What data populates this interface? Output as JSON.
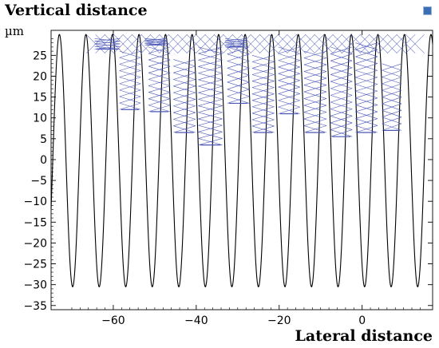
{
  "chart_data": {
    "type": "line",
    "ylabel": "Vertical distance",
    "yunit": "µm",
    "xlabel": "Lateral distance",
    "xlim": [
      -75,
      17
    ],
    "ylim": [
      -36,
      31
    ],
    "xticks": [
      -60,
      -40,
      -20,
      0
    ],
    "xtick_labels": [
      "−60",
      "−40",
      "−20",
      "0"
    ],
    "yticks": [
      25,
      20,
      15,
      10,
      5,
      0,
      -5,
      -10,
      -15,
      -20,
      -25,
      -30,
      -35
    ],
    "ytick_labels": [
      "25",
      "20",
      "15",
      "10",
      "5",
      "0",
      "−5",
      "−10",
      "−15",
      "−20",
      "−25",
      "−30",
      "−35"
    ],
    "grid": false,
    "series": [
      {
        "kind": "grating-surface",
        "color": "#000000",
        "period_um": 6.4,
        "crest_um": 30,
        "trough_um": -30.5,
        "x_start": -75,
        "x_end": 17
      },
      {
        "kind": "ray-traces",
        "color": "#4a56b8",
        "groove_bands": [
          {
            "x0": -64.5,
            "x1": -58.4,
            "ytop": 29,
            "ybot": 26.5
          },
          {
            "x0": -58.5,
            "x1": -53.4,
            "ytop": 26,
            "ybot": 12
          },
          {
            "x0": -52.4,
            "x1": -47,
            "ytop": 29,
            "ybot": 27.5
          },
          {
            "x0": -51.5,
            "x1": -46.3,
            "ytop": 27,
            "ybot": 11.5
          },
          {
            "x0": -45.5,
            "x1": -40.2,
            "ytop": 24,
            "ybot": 6.5
          },
          {
            "x0": -39.5,
            "x1": -33.7,
            "ytop": 27,
            "ybot": 3.5
          },
          {
            "x0": -33,
            "x1": -27.8,
            "ytop": 29,
            "ybot": 27
          },
          {
            "x0": -32.5,
            "x1": -27.2,
            "ytop": 27,
            "ybot": 13.5
          },
          {
            "x0": -26.5,
            "x1": -21.2,
            "ytop": 25,
            "ybot": 6.5
          },
          {
            "x0": -20.2,
            "x1": -15,
            "ytop": 27,
            "ybot": 11
          },
          {
            "x0": -14,
            "x1": -8.6,
            "ytop": 26,
            "ybot": 6.5
          },
          {
            "x0": -7.6,
            "x1": -2.4,
            "ytop": 27,
            "ybot": 5.5
          },
          {
            "x0": -1.6,
            "x1": 3.7,
            "ytop": 28,
            "ybot": 6.5
          },
          {
            "x0": 4.8,
            "x1": 9.5,
            "ytop": 23,
            "ybot": 7
          }
        ],
        "top_bundle": {
          "x0": -66.5,
          "x1": 11.5,
          "y": 30
        }
      }
    ]
  }
}
